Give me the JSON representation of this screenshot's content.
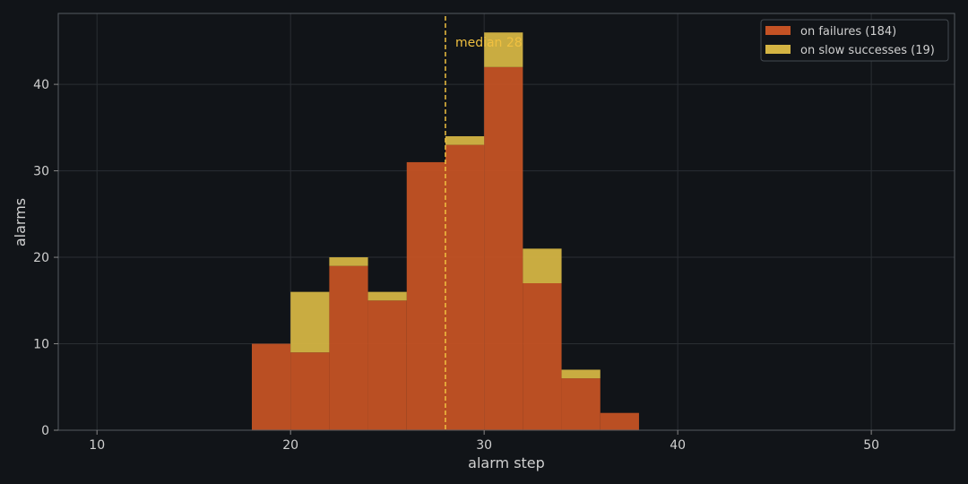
{
  "chart_data": {
    "type": "bar",
    "stacked": true,
    "xlabel": "alarm step",
    "ylabel": "alarms",
    "xlim": [
      8,
      54.3
    ],
    "ylim": [
      0,
      48.2
    ],
    "xticks": [
      10,
      20,
      30,
      40,
      50
    ],
    "yticks": [
      0,
      10,
      20,
      30,
      40
    ],
    "grid": true,
    "legend_position": "top-right",
    "bin_edges": [
      18,
      20,
      22,
      24,
      26,
      28,
      30,
      32,
      34,
      36,
      38
    ],
    "series": [
      {
        "name": "on failures (184)",
        "color": "#c45224",
        "values": [
          10,
          9,
          19,
          15,
          31,
          33,
          42,
          17,
          6,
          2
        ]
      },
      {
        "name": "on slow successes (19)",
        "color": "#d4b443",
        "values": [
          0,
          7,
          1,
          1,
          0,
          1,
          4,
          4,
          1,
          0
        ]
      }
    ],
    "annotations": [
      {
        "type": "vline",
        "x": 28,
        "label": "median 28",
        "color": "#f0c040"
      }
    ]
  },
  "colors": {
    "background": "#111418",
    "axes_face": "#111418",
    "spine": "#555a60",
    "grid": "#2a2e33",
    "text": "#d0d0d0"
  }
}
